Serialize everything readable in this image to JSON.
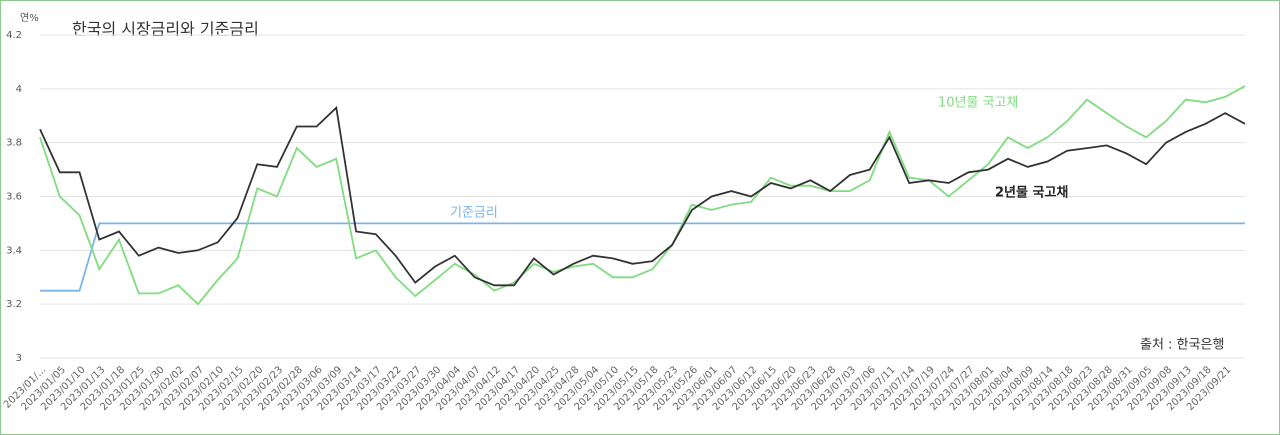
{
  "chart_data": {
    "type": "line",
    "title": "한국의 시장금리와 기준금리",
    "y_unit": "연%",
    "source": "출처 : 한국은행",
    "categories": [
      "2023/01/...",
      "2023/01/05",
      "2023/01/10",
      "2023/01/13",
      "2023/01/18",
      "2023/01/25",
      "2023/01/30",
      "2023/02/02",
      "2023/02/07",
      "2023/02/10",
      "2023/02/15",
      "2023/02/20",
      "2023/02/23",
      "2023/02/28",
      "2023/03/06",
      "2023/03/09",
      "2023/03/14",
      "2023/03/17",
      "2023/03/22",
      "2023/03/27",
      "2023/03/30",
      "2023/04/04",
      "2023/04/07",
      "2023/04/12",
      "2023/04/17",
      "2023/04/20",
      "2023/04/25",
      "2023/04/28",
      "2023/05/04",
      "2023/05/10",
      "2023/05/15",
      "2023/05/18",
      "2023/05/23",
      "2023/05/26",
      "2023/06/01",
      "2023/06/07",
      "2023/06/12",
      "2023/06/15",
      "2023/06/20",
      "2023/06/23",
      "2023/06/28",
      "2023/07/03",
      "2023/07/06",
      "2023/07/11",
      "2023/07/14",
      "2023/07/19",
      "2023/07/24",
      "2023/07/27",
      "2023/08/01",
      "2023/08/04",
      "2023/08/09",
      "2023/08/14",
      "2023/08/18",
      "2023/08/23",
      "2023/08/28",
      "2023/08/31",
      "2023/09/05",
      "2023/09/08",
      "2023/09/13",
      "2023/09/18",
      "2023/09/21",
      null
    ],
    "series": [
      {
        "name": "2년물 국고채",
        "color": "#333333",
        "values": [
          3.85,
          3.69,
          3.69,
          3.44,
          3.47,
          3.38,
          3.41,
          3.39,
          3.4,
          3.43,
          3.52,
          3.72,
          3.71,
          3.86,
          3.86,
          3.93,
          3.47,
          3.46,
          3.38,
          3.28,
          3.34,
          3.38,
          3.3,
          3.27,
          3.27,
          3.37,
          3.31,
          3.35,
          3.38,
          3.37,
          3.35,
          3.36,
          3.42,
          3.55,
          3.6,
          3.62,
          3.6,
          3.65,
          3.63,
          3.66,
          3.62,
          3.68,
          3.7,
          3.82,
          3.65,
          3.66,
          3.65,
          3.69,
          3.7,
          3.74,
          3.71,
          3.73,
          3.77,
          3.78,
          3.79,
          3.76,
          3.72,
          3.8,
          3.84,
          3.87,
          3.91,
          3.87
        ]
      },
      {
        "name": "10년물 국고채",
        "color": "#7fdc7f",
        "values": [
          3.82,
          3.6,
          3.53,
          3.33,
          3.44,
          3.24,
          3.24,
          3.27,
          3.2,
          3.29,
          3.37,
          3.63,
          3.6,
          3.78,
          3.71,
          3.74,
          3.37,
          3.4,
          3.3,
          3.23,
          3.29,
          3.35,
          3.31,
          3.25,
          3.28,
          3.35,
          3.32,
          3.34,
          3.35,
          3.3,
          3.3,
          3.33,
          3.42,
          3.57,
          3.55,
          3.57,
          3.58,
          3.67,
          3.64,
          3.64,
          3.62,
          3.62,
          3.66,
          3.84,
          3.67,
          3.66,
          3.6,
          3.66,
          3.72,
          3.82,
          3.78,
          3.82,
          3.88,
          3.96,
          3.91,
          3.86,
          3.82,
          3.88,
          3.96,
          3.95,
          3.97,
          4.01
        ]
      },
      {
        "name": "기준금리",
        "color": "#7cb4e8",
        "values": [
          3.25,
          3.25,
          3.25,
          3.5,
          3.5,
          3.5,
          3.5,
          3.5,
          3.5,
          3.5,
          3.5,
          3.5,
          3.5,
          3.5,
          3.5,
          3.5,
          3.5,
          3.5,
          3.5,
          3.5,
          3.5,
          3.5,
          3.5,
          3.5,
          3.5,
          3.5,
          3.5,
          3.5,
          3.5,
          3.5,
          3.5,
          3.5,
          3.5,
          3.5,
          3.5,
          3.5,
          3.5,
          3.5,
          3.5,
          3.5,
          3.5,
          3.5,
          3.5,
          3.5,
          3.5,
          3.5,
          3.5,
          3.5,
          3.5,
          3.5,
          3.5,
          3.5,
          3.5,
          3.5,
          3.5,
          3.5,
          3.5,
          3.5,
          3.5,
          3.5,
          3.5,
          3.5
        ]
      }
    ],
    "ylim": [
      3,
      4.2
    ],
    "yticks": [
      3,
      3.2,
      3.4,
      3.6,
      3.8,
      4,
      4.2
    ],
    "grid": true
  }
}
